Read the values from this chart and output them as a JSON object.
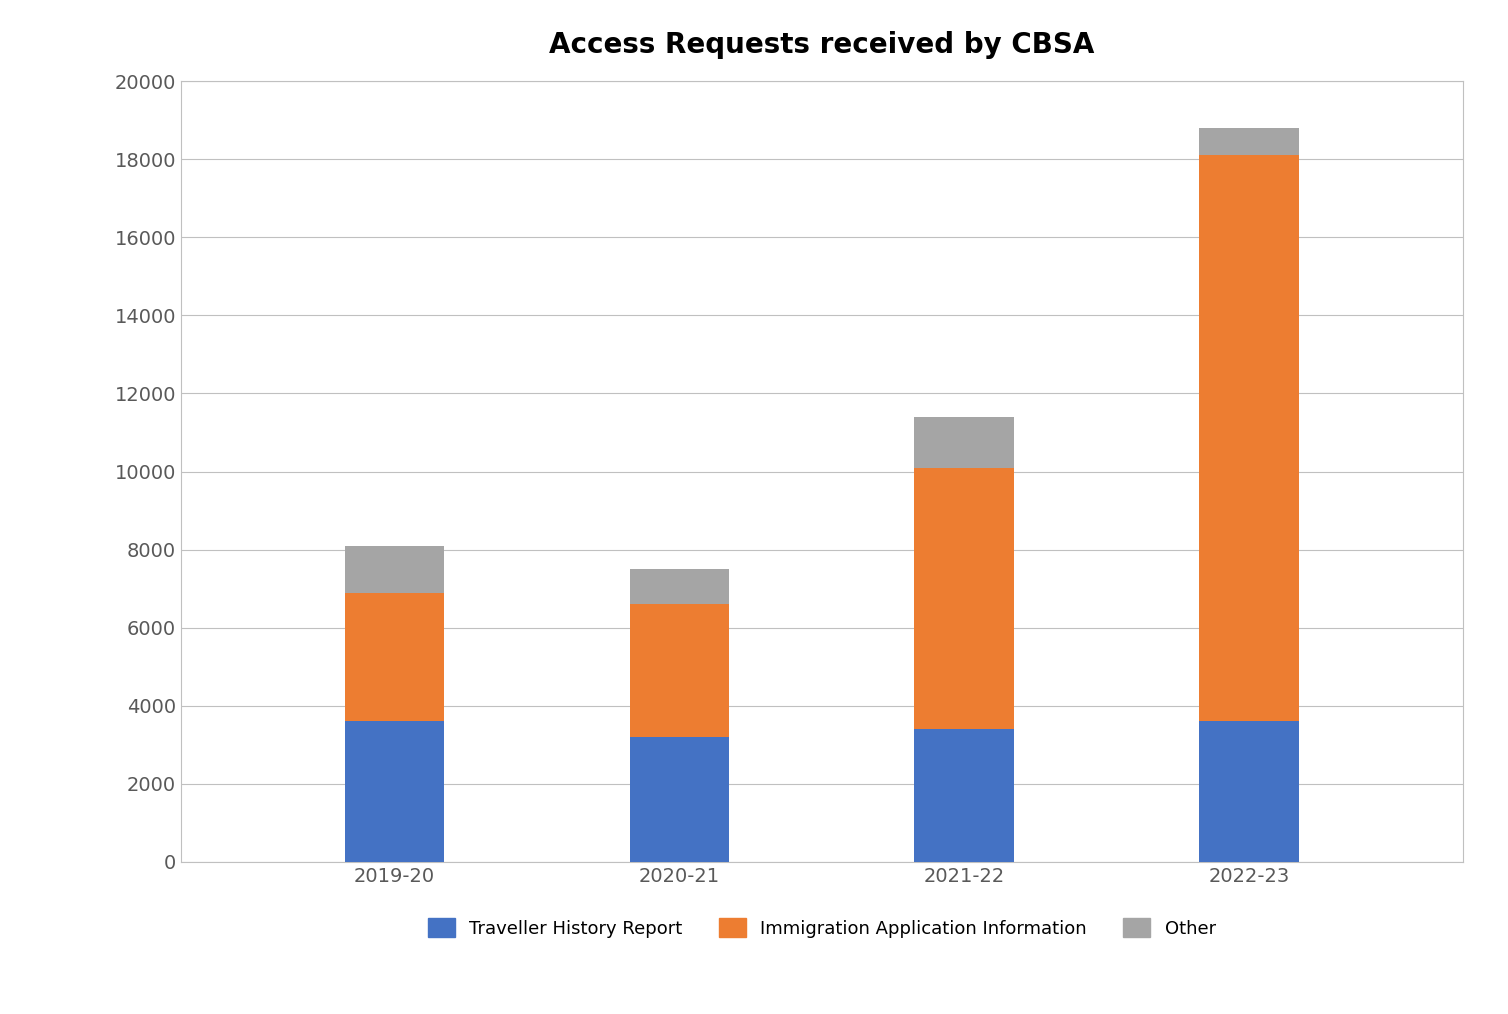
{
  "title": "Access Requests received by CBSA",
  "categories": [
    "2019-20",
    "2020-21",
    "2021-22",
    "2022-23"
  ],
  "traveller": [
    3600,
    3200,
    3400,
    3600
  ],
  "immigration": [
    3300,
    3400,
    6700,
    14500
  ],
  "other": [
    1200,
    900,
    1300,
    700
  ],
  "colors": {
    "traveller": "#4472C4",
    "immigration": "#ED7D31",
    "other": "#A5A5A5"
  },
  "legend_labels": [
    "Traveller History Report",
    "Immigration Application Information",
    "Other"
  ],
  "ylim": [
    0,
    20000
  ],
  "yticks": [
    0,
    2000,
    4000,
    6000,
    8000,
    10000,
    12000,
    14000,
    16000,
    18000,
    20000
  ],
  "background_color": "#ffffff",
  "plot_bg_color": "#ffffff",
  "grid_color": "#C0C0C0",
  "border_color": "#C0C0C0",
  "title_fontsize": 20,
  "tick_fontsize": 14,
  "legend_fontsize": 13,
  "bar_width": 0.35
}
